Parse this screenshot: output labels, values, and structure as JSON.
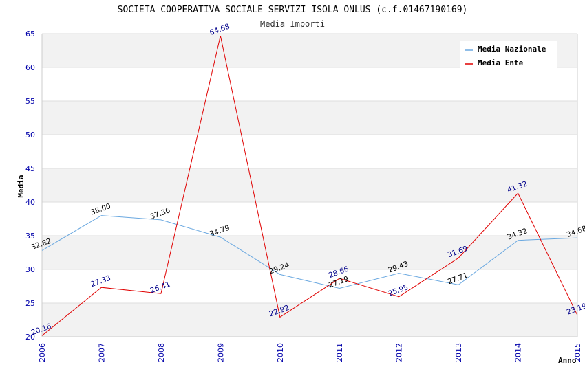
{
  "chart_data": {
    "type": "line",
    "title": "SOCIETA COOPERATIVA SOCIALE SERVIZI ISOLA ONLUS (c.f.01467190169)",
    "subtitle": "Media Importi",
    "xlabel": "Anno",
    "ylabel": "Media",
    "categories": [
      "2006",
      "2007",
      "2008",
      "2009",
      "2010",
      "2011",
      "2012",
      "2013",
      "2014",
      "2015"
    ],
    "ylim": [
      20,
      65
    ],
    "yticks": [
      20,
      25,
      30,
      35,
      40,
      45,
      50,
      55,
      60,
      65
    ],
    "grid": true,
    "legend_position": "top-right",
    "series": [
      {
        "name": "Media Nazionale",
        "color": "#6aa8e0",
        "label_color": "#000000",
        "values": [
          32.82,
          38.0,
          37.36,
          34.79,
          29.24,
          27.19,
          29.43,
          27.71,
          34.32,
          34.68
        ],
        "labels": [
          "32.82",
          "38.00",
          "37.36",
          "34.79",
          "29.24",
          "27.19",
          "29.43",
          "27.71",
          "34.32",
          "34.68"
        ]
      },
      {
        "name": "Media Ente",
        "color": "#e00000",
        "label_color": "#00008b",
        "values": [
          20.16,
          27.33,
          26.41,
          64.68,
          22.92,
          28.66,
          25.95,
          31.69,
          41.32,
          23.19
        ],
        "labels": [
          "20.16",
          "27.33",
          "26.41",
          "64.68",
          "22.92",
          "28.66",
          "25.95",
          "31.69",
          "41.32",
          "23.19"
        ]
      }
    ]
  },
  "colors": {
    "tick_text": "#0000aa",
    "band": "#f2f2f2",
    "grid": "#dddddd",
    "axis": "#cccccc"
  }
}
